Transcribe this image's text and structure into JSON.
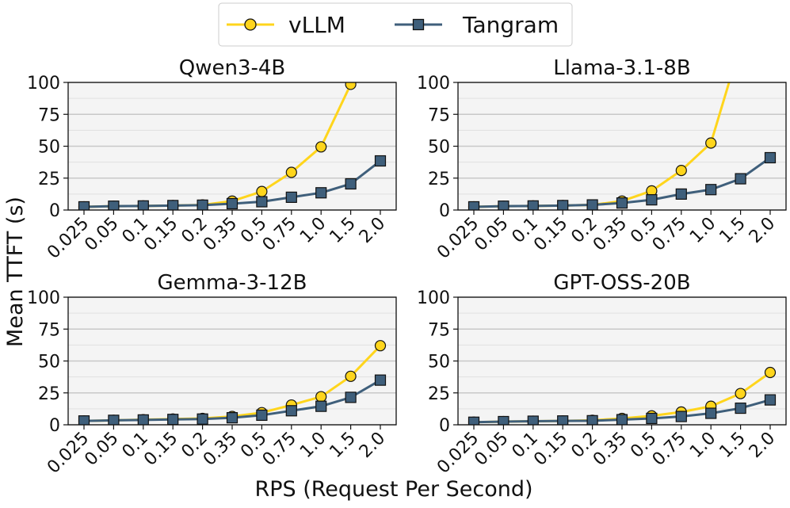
{
  "figure": {
    "ylabel": "Mean TTFT (s)",
    "xlabel": "RPS (Request Per Second)"
  },
  "legend": {
    "placement": "top-center",
    "entries": [
      {
        "label": "vLLM",
        "color": "#FFD51C",
        "marker": "circle"
      },
      {
        "label": "Tangram",
        "color": "#3F5F7B",
        "marker": "square"
      }
    ]
  },
  "chart_data": [
    {
      "type": "line",
      "title": "Qwen3-4B",
      "categories": [
        "0.025",
        "0.05",
        "0.1",
        "0.15",
        "0.2",
        "0.35",
        "0.5",
        "0.75",
        "1.0",
        "1.5",
        "2.0"
      ],
      "ylim": [
        0,
        100
      ],
      "yticks": [
        0,
        25,
        50,
        75,
        100
      ],
      "grid": true,
      "series": [
        {
          "name": "vLLM",
          "values": [
            2.5,
            3.0,
            3.2,
            3.5,
            4.0,
            7.0,
            14.5,
            29.5,
            49.5,
            98.5,
            null
          ]
        },
        {
          "name": "Tangram",
          "values": [
            2.5,
            3.0,
            3.2,
            3.5,
            3.8,
            5.0,
            6.5,
            10.0,
            13.5,
            20.5,
            38.5
          ]
        }
      ]
    },
    {
      "type": "line",
      "title": "Llama-3.1-8B",
      "categories": [
        "0.025",
        "0.05",
        "0.1",
        "0.15",
        "0.2",
        "0.35",
        "0.5",
        "0.75",
        "1.0",
        "1.5",
        "2.0"
      ],
      "ylim": [
        0,
        100
      ],
      "yticks": [
        0,
        25,
        50,
        75,
        100
      ],
      "grid": true,
      "series": [
        {
          "name": "vLLM",
          "values": [
            2.5,
            3.0,
            3.2,
            3.5,
            4.0,
            7.0,
            15.0,
            31.0,
            52.5,
            130.0,
            null
          ]
        },
        {
          "name": "Tangram",
          "values": [
            2.5,
            3.0,
            3.2,
            3.5,
            4.0,
            5.5,
            8.0,
            12.5,
            16.0,
            24.5,
            41.0
          ]
        }
      ]
    },
    {
      "type": "line",
      "title": "Gemma-3-12B",
      "categories": [
        "0.025",
        "0.05",
        "0.1",
        "0.15",
        "0.2",
        "0.35",
        "0.5",
        "0.75",
        "1.0",
        "1.5",
        "2.0"
      ],
      "ylim": [
        0,
        100
      ],
      "yticks": [
        0,
        25,
        50,
        75,
        100
      ],
      "grid": true,
      "series": [
        {
          "name": "vLLM",
          "values": [
            3.0,
            3.5,
            4.0,
            4.5,
            5.0,
            6.5,
            9.5,
            15.5,
            22.0,
            38.0,
            62.0
          ]
        },
        {
          "name": "Tangram",
          "values": [
            3.0,
            3.5,
            3.8,
            4.2,
            4.5,
            5.5,
            7.5,
            11.0,
            14.5,
            21.5,
            35.0
          ]
        }
      ]
    },
    {
      "type": "line",
      "title": "GPT-OSS-20B",
      "categories": [
        "0.025",
        "0.05",
        "0.1",
        "0.15",
        "0.2",
        "0.35",
        "0.5",
        "0.75",
        "1.0",
        "1.5",
        "2.0"
      ],
      "ylim": [
        0,
        100
      ],
      "yticks": [
        0,
        25,
        50,
        75,
        100
      ],
      "grid": true,
      "series": [
        {
          "name": "vLLM",
          "values": [
            2.0,
            2.5,
            2.8,
            3.0,
            3.5,
            5.0,
            7.0,
            10.0,
            14.5,
            24.5,
            41.0
          ]
        },
        {
          "name": "Tangram",
          "values": [
            2.0,
            2.5,
            2.8,
            3.0,
            3.2,
            4.0,
            5.0,
            6.5,
            9.0,
            13.0,
            19.5
          ]
        }
      ]
    }
  ]
}
